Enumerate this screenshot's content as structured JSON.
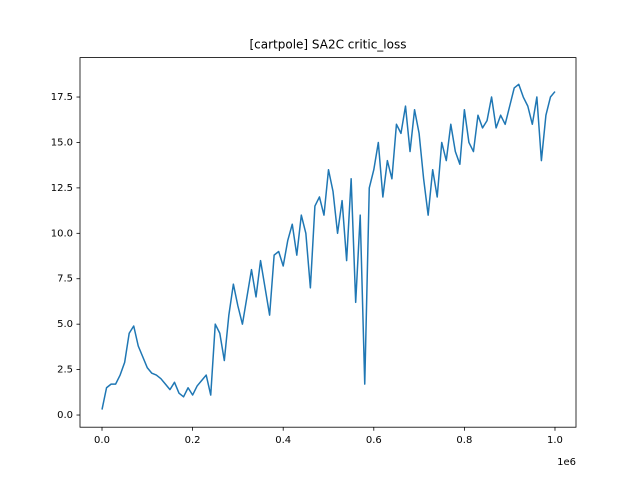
{
  "chart_data": {
    "type": "line",
    "title": "[cartpole] SA2C critic_loss",
    "x_offset_label": "1e6",
    "color": "#1f77b4",
    "x": [
      0.0,
      0.01,
      0.02,
      0.03,
      0.04,
      0.05,
      0.06,
      0.07,
      0.08,
      0.09,
      0.1,
      0.11,
      0.12,
      0.13,
      0.14,
      0.15,
      0.16,
      0.17,
      0.18,
      0.19,
      0.2,
      0.21,
      0.22,
      0.23,
      0.24,
      0.25,
      0.26,
      0.27,
      0.28,
      0.29,
      0.3,
      0.31,
      0.32,
      0.33,
      0.34,
      0.35,
      0.36,
      0.37,
      0.38,
      0.39,
      0.4,
      0.41,
      0.42,
      0.43,
      0.44,
      0.45,
      0.46,
      0.47,
      0.48,
      0.49,
      0.5,
      0.51,
      0.52,
      0.53,
      0.54,
      0.55,
      0.56,
      0.57,
      0.58,
      0.59,
      0.6,
      0.61,
      0.62,
      0.63,
      0.64,
      0.65,
      0.66,
      0.67,
      0.68,
      0.69,
      0.7,
      0.71,
      0.72,
      0.73,
      0.74,
      0.75,
      0.76,
      0.77,
      0.78,
      0.79,
      0.8,
      0.81,
      0.82,
      0.83,
      0.84,
      0.85,
      0.86,
      0.87,
      0.88,
      0.89,
      0.9,
      0.91,
      0.92,
      0.93,
      0.94,
      0.95,
      0.96,
      0.97,
      0.98,
      0.99,
      1.0
    ],
    "values": [
      0.3,
      1.5,
      1.7,
      1.7,
      2.2,
      2.9,
      4.5,
      4.9,
      3.8,
      3.2,
      2.6,
      2.3,
      2.2,
      2.0,
      1.7,
      1.4,
      1.8,
      1.2,
      1.0,
      1.5,
      1.1,
      1.6,
      1.9,
      2.2,
      1.1,
      5.0,
      4.5,
      3.0,
      5.5,
      7.2,
      6.0,
      5.0,
      6.5,
      8.0,
      6.5,
      8.5,
      7.0,
      5.5,
      8.8,
      9.0,
      8.2,
      9.6,
      10.5,
      8.8,
      11.0,
      10.0,
      7.0,
      11.5,
      12.0,
      11.0,
      13.5,
      12.3,
      10.0,
      11.8,
      8.5,
      13.0,
      6.2,
      11.0,
      1.7,
      12.5,
      13.5,
      15.0,
      12.0,
      14.0,
      13.0,
      16.0,
      15.5,
      17.0,
      14.5,
      16.8,
      15.5,
      13.0,
      11.0,
      13.5,
      12.0,
      15.0,
      14.0,
      16.0,
      14.5,
      13.8,
      16.8,
      15.0,
      14.5,
      16.5,
      15.8,
      16.2,
      17.5,
      15.8,
      16.5,
      16.0,
      17.0,
      18.0,
      18.2,
      17.5,
      17.0,
      16.0,
      17.5,
      14.0,
      16.5,
      17.5,
      17.8
    ],
    "xlim": [
      -0.0486,
      1.0464
    ],
    "xticks": [
      {
        "value": 0,
        "label": "0.0"
      },
      0.2,
      0.4,
      0.6,
      0.8,
      {
        "value": 1,
        "label": "1.0"
      }
    ],
    "ylim": [
      -0.67,
      19.67
    ],
    "yticks": [
      {
        "value": 0,
        "label": "0.0"
      },
      2.5,
      {
        "value": 5,
        "label": "5.0"
      },
      7.5,
      {
        "value": 10,
        "label": "10.0"
      },
      12.5,
      {
        "value": 15,
        "label": "15.0"
      },
      17.5
    ],
    "grid": false
  }
}
